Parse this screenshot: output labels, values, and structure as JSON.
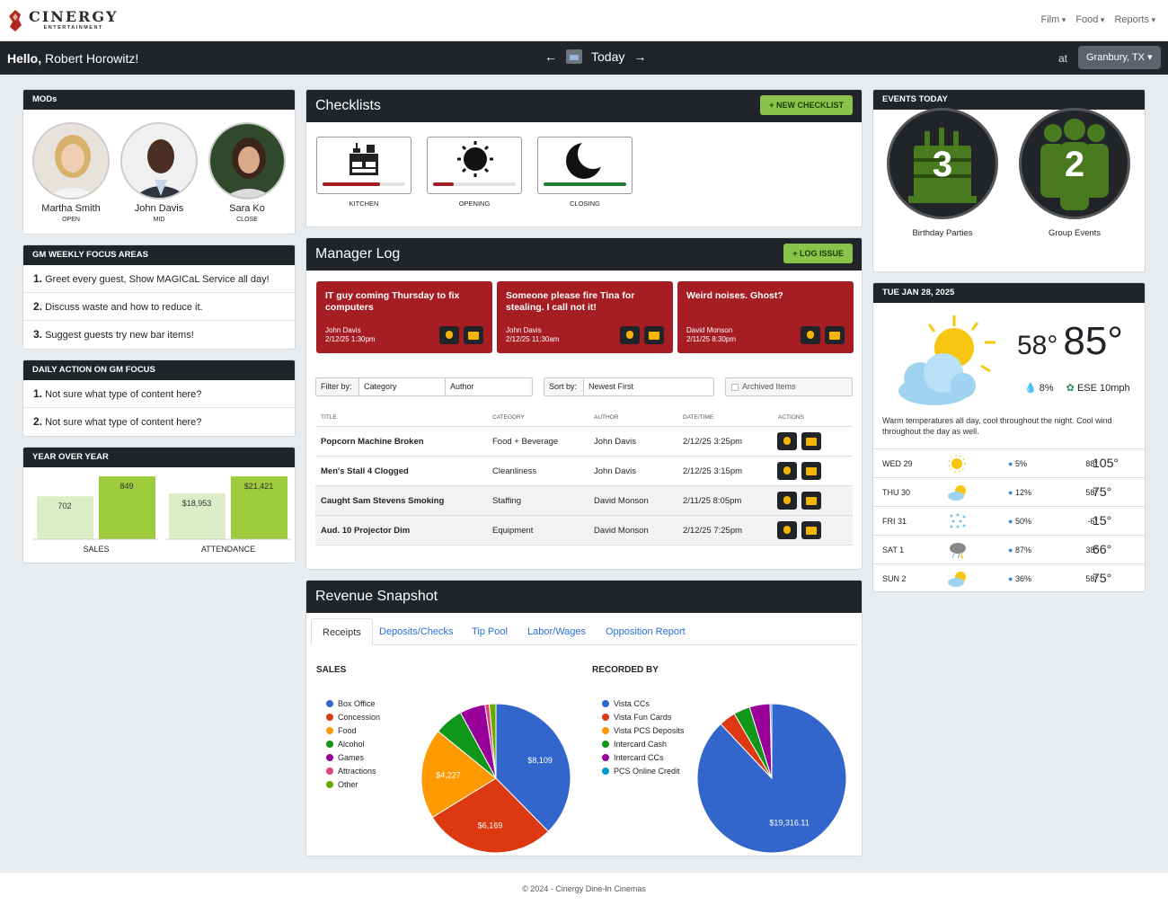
{
  "brand": {
    "name": "CINERGY",
    "sub": "ENTERTAINMENT"
  },
  "topmenu": [
    "Film",
    "Food",
    "Reports"
  ],
  "greeting": {
    "hello": "Hello,",
    "name": "Robert Horowitz!"
  },
  "datenav": {
    "label": "Today"
  },
  "location": {
    "at": "at",
    "value": "Granbury, TX"
  },
  "mods": {
    "title": "MODs",
    "people": [
      {
        "name": "Martha Smith",
        "shift": "OPEN"
      },
      {
        "name": "John Davis",
        "shift": "MID"
      },
      {
        "name": "Sara Ko",
        "shift": "CLOSE"
      }
    ]
  },
  "focus": {
    "title": "GM WEEKLY FOCUS AREAS",
    "items": [
      {
        "num": "1.",
        "text": "Greet every guest, Show MAGICaL Service all day!"
      },
      {
        "num": "2.",
        "text": "Discuss waste and how to reduce it."
      },
      {
        "num": "3.",
        "text": "Suggest guests try new bar items!"
      }
    ]
  },
  "daily": {
    "title": "DAILY ACTION ON GM FOCUS",
    "items": [
      {
        "num": "1.",
        "text": "Not sure what type of content here?"
      },
      {
        "num": "2.",
        "text": "Not sure what type of content here?"
      }
    ]
  },
  "yoy": {
    "title": "YEAR OVER YEAR",
    "groups": [
      {
        "label": "SALES",
        "prev": "702",
        "curr": "849",
        "prev_v": 702,
        "curr_v": 849
      },
      {
        "label": "ATTENDANCE",
        "prev": "$18,953",
        "curr": "$21,421",
        "prev_v": 18953,
        "curr_v": 21421
      }
    ]
  },
  "checklists": {
    "title": "Checklists",
    "new_btn": "+ NEW CHECKLIST",
    "items": [
      {
        "label": "KITCHEN",
        "progress": 0.7,
        "color": "#a61d23",
        "icon": "stove-icon"
      },
      {
        "label": "OPENING",
        "progress": 0.25,
        "color": "#a61d23",
        "icon": "sun-icon"
      },
      {
        "label": "CLOSING",
        "progress": 1.0,
        "color": "#1e7e34",
        "icon": "moon-icon"
      }
    ]
  },
  "log": {
    "title": "Manager Log",
    "new_btn": "+ LOG ISSUE",
    "cards": [
      {
        "title": "IT guy coming Thursday to fix computers",
        "author": "John Davis",
        "date": "2/12/25 1:30pm"
      },
      {
        "title": "Someone please fire Tina for stealing. I call not it!",
        "author": "John Davis",
        "date": "2/12/25 11:30am"
      },
      {
        "title": "Weird noises. Ghost?",
        "author": "David Monson",
        "date": "2/11/25 8:30pm"
      }
    ],
    "filter": {
      "label": "Filter by:",
      "category": "Category",
      "author": "Author"
    },
    "sort": {
      "label": "Sort by:",
      "value": "Newest First"
    },
    "archived": "Archived Items",
    "columns": {
      "title": "TITLE",
      "category": "CATEGORY",
      "author": "AUTHOR",
      "datetime": "DATE/TIME",
      "actions": "ACTIONS"
    },
    "rows": [
      {
        "title": "Popcorn Machine Broken",
        "category": "Food + Beverage",
        "author": "John Davis",
        "date": "2/12/25 3:25pm"
      },
      {
        "title": "Men's Stall 4 Clogged",
        "category": "Cleanliness",
        "author": "John Davis",
        "date": "2/12/25 3:15pm"
      },
      {
        "title": "Caught Sam Stevens Smoking",
        "category": "Staffing",
        "author": "David Monson",
        "date": "2/11/25 8:05pm"
      },
      {
        "title": "Aud. 10 Projector Dim",
        "category": "Equipment",
        "author": "David Monson",
        "date": "2/12/25 7:25pm"
      }
    ]
  },
  "revenue": {
    "title": "Revenue Snapshot",
    "tabs": [
      "Receipts",
      "Deposits/Checks",
      "Tip Pool",
      "Labor/Wages",
      "Opposition Report"
    ],
    "sales_title": "SALES",
    "recorded_title": "RECORDED BY"
  },
  "chart_data": [
    {
      "type": "pie",
      "title": "SALES",
      "categories": [
        "Box Office",
        "Concession",
        "Food",
        "Alcohol",
        "Games",
        "Attractions",
        "Other"
      ],
      "values": [
        8109,
        6169,
        4227,
        1350,
        1190,
        200,
        310
      ],
      "colors": [
        "#3366cc",
        "#dc3912",
        "#ff9900",
        "#109618",
        "#990099",
        "#dd4477",
        "#66aa00"
      ],
      "labels": [
        "$8,109",
        "$6,169",
        "$4,227",
        "",
        "",
        "",
        ""
      ]
    },
    {
      "type": "pie",
      "title": "RECORDED BY",
      "categories": [
        "Vista CCs",
        "Vista Fun Cards",
        "Vista PCS Deposits",
        "Intercard Cash",
        "Intercard CCs",
        "PCS Online Credit"
      ],
      "values": [
        19316.11,
        800,
        0,
        780,
        980,
        80
      ],
      "colors": [
        "#3366cc",
        "#dc3912",
        "#ff9900",
        "#109618",
        "#990099",
        "#0099c6"
      ],
      "labels": [
        "$19,316.11",
        "",
        "",
        "",
        "",
        ""
      ]
    }
  ],
  "events": {
    "title": "EVENTS TODAY",
    "items": [
      {
        "count": "3",
        "label": "Birthday Parties",
        "icon": "cake-icon"
      },
      {
        "count": "2",
        "label": "Group Events",
        "icon": "group-icon"
      }
    ]
  },
  "weather": {
    "date": "TUE JAN 28, 2025",
    "low": "58°",
    "high": "85°",
    "precip": "8%",
    "wind": "ESE 10mph",
    "desc": "Warm temperatures all day, cool throughout the night. Cool wind throughout the day as well.",
    "forecast": [
      {
        "day": "WED 29",
        "precip": "5%",
        "low": "88°",
        "high": "105°",
        "icon": "sun-icon"
      },
      {
        "day": "THU 30",
        "precip": "12%",
        "low": "58°",
        "high": "75°",
        "icon": "partly-cloudy-icon"
      },
      {
        "day": "FRI 31",
        "precip": "50%",
        "low": "-6°",
        "high": "15°",
        "icon": "snow-icon"
      },
      {
        "day": "SAT 1",
        "precip": "87%",
        "low": "38°",
        "high": "66°",
        "icon": "storm-icon"
      },
      {
        "day": "SUN 2",
        "precip": "36%",
        "low": "58°",
        "high": "75°",
        "icon": "partly-cloudy-icon"
      }
    ]
  },
  "footer": "© 2024 - Cinergy Dine-In Cinemas"
}
